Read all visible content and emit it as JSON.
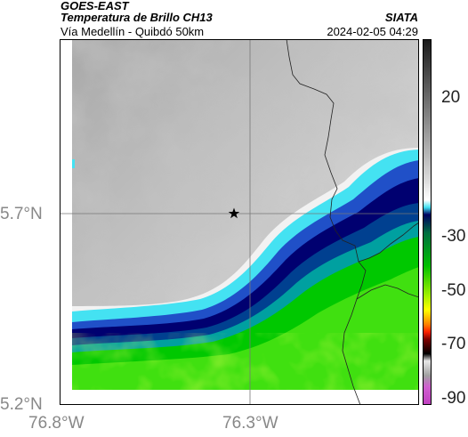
{
  "header": {
    "satellite": "GOES-EAST",
    "product": "Temperatura de Brillo CH13",
    "region": "Vía Medellín - Quibdó 50km",
    "source": "SIATA",
    "datetime": "2024-02-05 04:29"
  },
  "map": {
    "lat_ticks": [
      "5.7°N",
      "5.2°N"
    ],
    "lon_ticks": [
      "76.8°W",
      "76.3°W"
    ],
    "marker": "star-icon"
  },
  "colorbar": {
    "tick_labels": [
      "20",
      "-30",
      "-50",
      "-70",
      "-90"
    ],
    "colors": {
      "cold_purple": "#c040c0",
      "black": "#000000",
      "red": "#ff2000",
      "yellow": "#ffff00",
      "green": "#00c000",
      "navy": "#000060",
      "cyan": "#40e0f0",
      "white": "#ffffff",
      "gray_top": "#202020"
    }
  }
}
